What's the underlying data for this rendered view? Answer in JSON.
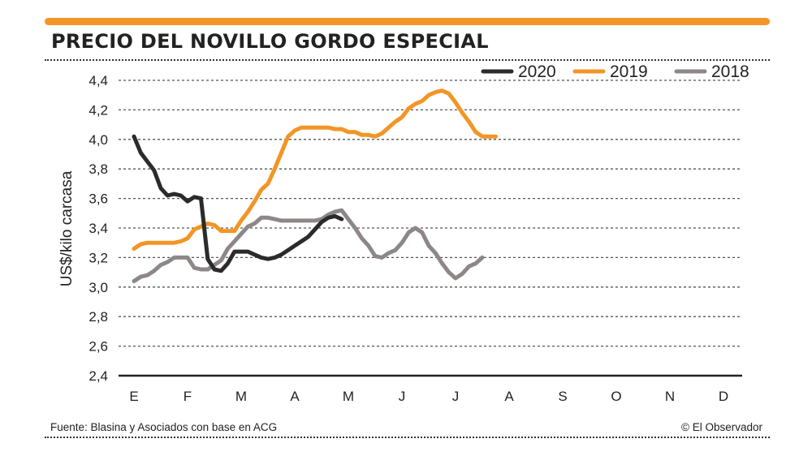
{
  "header": {
    "title": "PRECIO DEL NOVILLO GORDO ESPECIAL"
  },
  "footer": {
    "source": "Fuente: Blasina y Asociados con base en ACG",
    "credit": "© El Observador"
  },
  "colors": {
    "accent": "#f39526",
    "series_2020": "#2b2b2b",
    "series_2019": "#f39526",
    "series_2018": "#8d8788"
  },
  "chart_data": {
    "type": "line",
    "title": "PRECIO DEL NOVILLO GORDO ESPECIAL",
    "xlabel": "",
    "ylabel": "US$/kilo carcasa",
    "ylim": [
      2.4,
      4.4
    ],
    "yticks": [
      "2,4",
      "2,6",
      "2,8",
      "3,0",
      "3,2",
      "3,4",
      "3,6",
      "3,8",
      "4,0",
      "4,2",
      "4,4"
    ],
    "ytick_values": [
      2.4,
      2.6,
      2.8,
      3.0,
      3.2,
      3.4,
      3.6,
      3.8,
      4.0,
      4.2,
      4.4
    ],
    "categories": [
      "E",
      "F",
      "M",
      "A",
      "M",
      "J",
      "J",
      "A",
      "S",
      "O",
      "N",
      "D"
    ],
    "grid": true,
    "legend_position": "top-right",
    "series": [
      {
        "name": "2020",
        "color": "#2b2b2b",
        "points": [
          [
            0,
            4.02
          ],
          [
            0.25,
            3.91
          ],
          [
            0.5,
            3.85
          ],
          [
            0.75,
            3.79
          ],
          [
            1,
            3.67
          ],
          [
            1.25,
            3.62
          ],
          [
            1.5,
            3.63
          ],
          [
            1.75,
            3.62
          ],
          [
            2,
            3.58
          ],
          [
            2.25,
            3.61
          ],
          [
            2.5,
            3.6
          ],
          [
            2.75,
            3.19
          ],
          [
            3,
            3.12
          ],
          [
            3.25,
            3.11
          ],
          [
            3.5,
            3.16
          ],
          [
            3.75,
            3.24
          ],
          [
            4,
            3.24
          ],
          [
            4.25,
            3.24
          ],
          [
            4.5,
            3.22
          ],
          [
            4.75,
            3.2
          ],
          [
            5,
            3.19
          ],
          [
            5.25,
            3.2
          ],
          [
            5.5,
            3.22
          ],
          [
            5.75,
            3.25
          ],
          [
            6,
            3.28
          ],
          [
            6.25,
            3.31
          ],
          [
            6.5,
            3.34
          ],
          [
            6.75,
            3.39
          ],
          [
            7,
            3.44
          ],
          [
            7.25,
            3.47
          ],
          [
            7.5,
            3.48
          ],
          [
            7.75,
            3.46
          ]
        ]
      },
      {
        "name": "2019",
        "color": "#f39526",
        "points": [
          [
            0,
            3.26
          ],
          [
            0.25,
            3.29
          ],
          [
            0.5,
            3.3
          ],
          [
            0.75,
            3.3
          ],
          [
            1,
            3.3
          ],
          [
            1.25,
            3.3
          ],
          [
            1.5,
            3.3
          ],
          [
            1.75,
            3.31
          ],
          [
            2,
            3.33
          ],
          [
            2.25,
            3.39
          ],
          [
            2.5,
            3.41
          ],
          [
            2.75,
            3.43
          ],
          [
            3,
            3.42
          ],
          [
            3.25,
            3.38
          ],
          [
            3.5,
            3.38
          ],
          [
            3.75,
            3.38
          ],
          [
            4,
            3.45
          ],
          [
            4.25,
            3.51
          ],
          [
            4.5,
            3.58
          ],
          [
            4.75,
            3.66
          ],
          [
            5,
            3.7
          ],
          [
            5.25,
            3.8
          ],
          [
            5.5,
            3.91
          ],
          [
            5.75,
            4.02
          ],
          [
            6,
            4.06
          ],
          [
            6.25,
            4.08
          ],
          [
            6.5,
            4.08
          ],
          [
            6.75,
            4.08
          ],
          [
            7,
            4.08
          ],
          [
            7.25,
            4.08
          ],
          [
            7.5,
            4.07
          ],
          [
            7.75,
            4.07
          ],
          [
            8,
            4.05
          ],
          [
            8.25,
            4.05
          ],
          [
            8.5,
            4.03
          ],
          [
            8.75,
            4.03
          ],
          [
            9,
            4.02
          ],
          [
            9.25,
            4.04
          ],
          [
            9.5,
            4.08
          ],
          [
            9.75,
            4.12
          ],
          [
            10,
            4.15
          ],
          [
            10.25,
            4.21
          ],
          [
            10.5,
            4.24
          ],
          [
            10.75,
            4.26
          ],
          [
            11,
            4.3
          ],
          [
            11.25,
            4.32
          ],
          [
            11.5,
            4.33
          ],
          [
            11.75,
            4.31
          ],
          [
            12,
            4.25
          ],
          [
            12.25,
            4.18
          ],
          [
            12.5,
            4.12
          ],
          [
            12.75,
            4.05
          ],
          [
            13,
            4.02
          ],
          [
            13.25,
            4.02
          ],
          [
            13.5,
            4.02
          ]
        ]
      },
      {
        "name": "2018",
        "color": "#8d8788",
        "points": [
          [
            0,
            3.04
          ],
          [
            0.25,
            3.07
          ],
          [
            0.5,
            3.08
          ],
          [
            0.75,
            3.11
          ],
          [
            1,
            3.15
          ],
          [
            1.25,
            3.17
          ],
          [
            1.5,
            3.2
          ],
          [
            1.75,
            3.2
          ],
          [
            2,
            3.2
          ],
          [
            2.25,
            3.13
          ],
          [
            2.5,
            3.12
          ],
          [
            2.75,
            3.12
          ],
          [
            3,
            3.15
          ],
          [
            3.25,
            3.18
          ],
          [
            3.5,
            3.26
          ],
          [
            3.75,
            3.31
          ],
          [
            4,
            3.36
          ],
          [
            4.25,
            3.41
          ],
          [
            4.5,
            3.43
          ],
          [
            4.75,
            3.47
          ],
          [
            5,
            3.47
          ],
          [
            5.25,
            3.46
          ],
          [
            5.5,
            3.45
          ],
          [
            5.75,
            3.45
          ],
          [
            6,
            3.45
          ],
          [
            6.25,
            3.45
          ],
          [
            6.5,
            3.45
          ],
          [
            6.75,
            3.45
          ],
          [
            7,
            3.46
          ],
          [
            7.25,
            3.49
          ],
          [
            7.5,
            3.51
          ],
          [
            7.75,
            3.52
          ],
          [
            8,
            3.46
          ],
          [
            8.25,
            3.4
          ],
          [
            8.5,
            3.33
          ],
          [
            8.75,
            3.28
          ],
          [
            9,
            3.21
          ],
          [
            9.25,
            3.2
          ],
          [
            9.5,
            3.23
          ],
          [
            9.75,
            3.25
          ],
          [
            10,
            3.3
          ],
          [
            10.25,
            3.37
          ],
          [
            10.5,
            3.4
          ],
          [
            10.75,
            3.37
          ],
          [
            11,
            3.28
          ],
          [
            11.25,
            3.23
          ],
          [
            11.5,
            3.16
          ],
          [
            11.75,
            3.1
          ],
          [
            12,
            3.06
          ],
          [
            12.25,
            3.09
          ],
          [
            12.5,
            3.14
          ],
          [
            12.75,
            3.16
          ],
          [
            13,
            3.2
          ]
        ]
      }
    ]
  }
}
